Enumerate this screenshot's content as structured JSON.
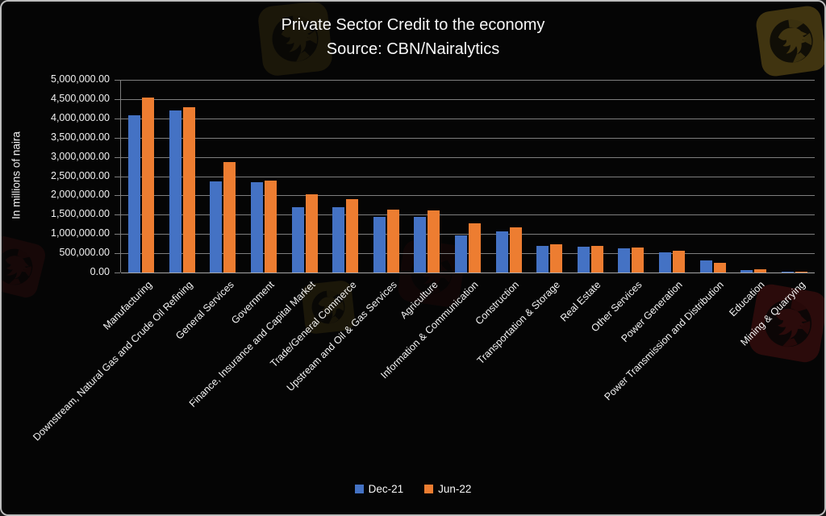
{
  "header": {
    "title": "Private Sector Credit to the economy",
    "subtitle": "Source: CBN/Nairalytics"
  },
  "colors": {
    "background": "#050505",
    "grid": "#7e7e7e",
    "axis": "#a8a8a8",
    "text": "#f5f5f5",
    "frame_border": "#bdbdbd",
    "series_dec21": "#4472C4",
    "series_jun22": "#ED7D31",
    "watermark_gold": "#8f7420",
    "watermark_red": "#4a1010"
  },
  "branding": {
    "logo": "eagle-logo"
  },
  "legend": {
    "items": [
      {
        "label": "Dec-21",
        "color": "#4472C4"
      },
      {
        "label": "Jun-22",
        "color": "#ED7D31"
      }
    ]
  },
  "chart_data": {
    "type": "bar",
    "title": "Private Sector Credit to the economy",
    "subtitle": "Source: CBN/Nairalytics",
    "xlabel": "",
    "ylabel": "In millions of naira",
    "ylim": [
      0,
      5000000
    ],
    "ytick_step": 500000,
    "ytick_format": "#,##0.00",
    "grid": true,
    "legend_position": "bottom",
    "categories": [
      "Manufacturing",
      "Downstream, Natural Gas and Crude Oil Refining",
      "General Services",
      "Government",
      "Finance, Insurance and Capital Market",
      "Trade/General Commerce",
      "Upstream and Oil & Gas Services",
      "Agriculture",
      "Information & Communication",
      "Construction",
      "Transportation & Storage",
      "Real Estate",
      "Other Services",
      "Power Generation",
      "Power Transmission and Distribution",
      "Education",
      "Mining & Quarrying"
    ],
    "series": [
      {
        "name": "Dec-21",
        "color": "#4472C4",
        "values": [
          4090000,
          4210000,
          2370000,
          2350000,
          1690000,
          1700000,
          1450000,
          1440000,
          955000,
          1060000,
          690000,
          665000,
          635000,
          530000,
          320000,
          70000,
          15000
        ]
      },
      {
        "name": "Jun-22",
        "color": "#ED7D31",
        "values": [
          4540000,
          4290000,
          2870000,
          2390000,
          2030000,
          1900000,
          1640000,
          1610000,
          1280000,
          1170000,
          730000,
          690000,
          650000,
          570000,
          250000,
          85000,
          20000
        ]
      }
    ]
  }
}
